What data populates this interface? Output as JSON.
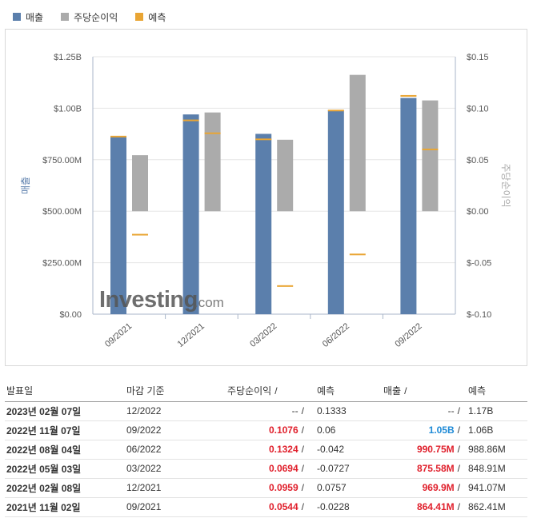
{
  "legend": {
    "revenue": {
      "label": "매출",
      "color": "#5b7fac"
    },
    "eps": {
      "label": "주당순이익",
      "color": "#ababab"
    },
    "forecast": {
      "label": "예측",
      "color": "#e9a534"
    }
  },
  "watermark": {
    "brand": "Investing",
    "suffix": ".com"
  },
  "chart_data": {
    "type": "bar",
    "categories": [
      "09/2021",
      "12/2021",
      "03/2022",
      "06/2022",
      "09/2022"
    ],
    "y_left": {
      "label": "매출",
      "ticks": [
        "$0.00",
        "$250.00M",
        "$500.00M",
        "$750.00M",
        "$1.00B",
        "$1.25B"
      ],
      "range": [
        0,
        1250
      ]
    },
    "y_right": {
      "label": "주당순이익",
      "ticks": [
        "$-0.10",
        "$-0.05",
        "$0.00",
        "$0.05",
        "$0.10",
        "$0.15"
      ],
      "range": [
        -0.1,
        0.15
      ]
    },
    "series": [
      {
        "name": "매출",
        "axis": "left",
        "values": [
          864.41,
          969.9,
          875.58,
          990.75,
          1050
        ]
      },
      {
        "name": "주당순이익",
        "axis": "right",
        "values": [
          0.0544,
          0.0959,
          0.0694,
          0.1324,
          0.1076
        ]
      }
    ],
    "forecast": {
      "revenue": [
        862.41,
        941.07,
        848.91,
        988.86,
        1060
      ],
      "eps": [
        -0.0228,
        0.0757,
        -0.0727,
        -0.042,
        0.06
      ]
    }
  },
  "table": {
    "headers": {
      "date": "발표일",
      "period": "마감 기준",
      "eps": "주당순이익",
      "eps_fc": "예측",
      "rev": "매출",
      "rev_fc": "예측",
      "slash": "/"
    },
    "rows": [
      {
        "date": "2023년 02월 07일",
        "period": "12/2022",
        "eps": "--",
        "eps_fc": "0.1333",
        "rev": "--",
        "rev_fc": "1.17B",
        "eps_class": "",
        "rev_class": ""
      },
      {
        "date": "2022년 11월 07일",
        "period": "09/2022",
        "eps": "0.1076",
        "eps_fc": "0.06",
        "rev": "1.05B",
        "rev_fc": "1.06B",
        "eps_class": "red",
        "rev_class": "blue"
      },
      {
        "date": "2022년 08월 04일",
        "period": "06/2022",
        "eps": "0.1324",
        "eps_fc": "-0.042",
        "rev": "990.75M",
        "rev_fc": "988.86M",
        "eps_class": "red",
        "rev_class": "red"
      },
      {
        "date": "2022년 05월 03일",
        "period": "03/2022",
        "eps": "0.0694",
        "eps_fc": "-0.0727",
        "rev": "875.58M",
        "rev_fc": "848.91M",
        "eps_class": "red",
        "rev_class": "red"
      },
      {
        "date": "2022년 02월 08일",
        "period": "12/2021",
        "eps": "0.0959",
        "eps_fc": "0.0757",
        "rev": "969.9M",
        "rev_fc": "941.07M",
        "eps_class": "red",
        "rev_class": "red"
      },
      {
        "date": "2021년 11월 02일",
        "period": "09/2021",
        "eps": "0.0544",
        "eps_fc": "-0.0228",
        "rev": "864.41M",
        "rev_fc": "862.41M",
        "eps_class": "red",
        "rev_class": "red"
      }
    ]
  }
}
